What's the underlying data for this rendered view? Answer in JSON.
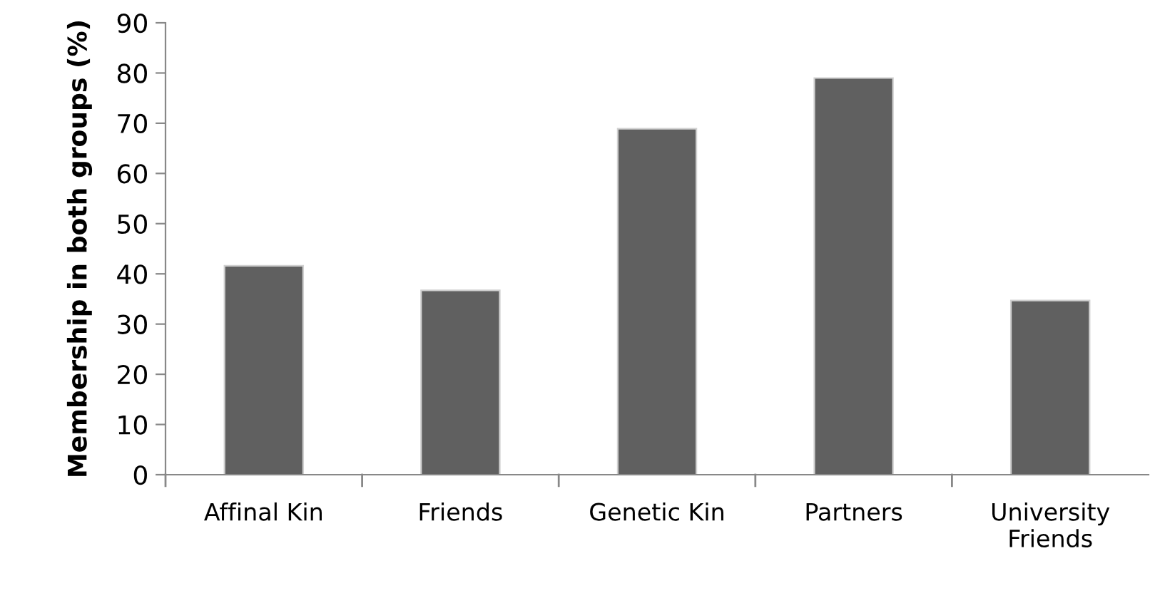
{
  "chart_data": {
    "type": "bar",
    "ylabel": "Membership in both groups (%)",
    "categories": [
      "Affinal Kin",
      "Friends",
      "Genetic Kin",
      "Partners",
      "University\nFriends"
    ],
    "values": [
      41.6,
      36.7,
      68.9,
      79.0,
      34.7
    ],
    "color": "#606060",
    "ylim": [
      0,
      90
    ],
    "yticks": [
      0,
      10,
      20,
      30,
      40,
      50,
      60,
      70,
      80,
      90
    ],
    "grid": false,
    "legend": false
  }
}
